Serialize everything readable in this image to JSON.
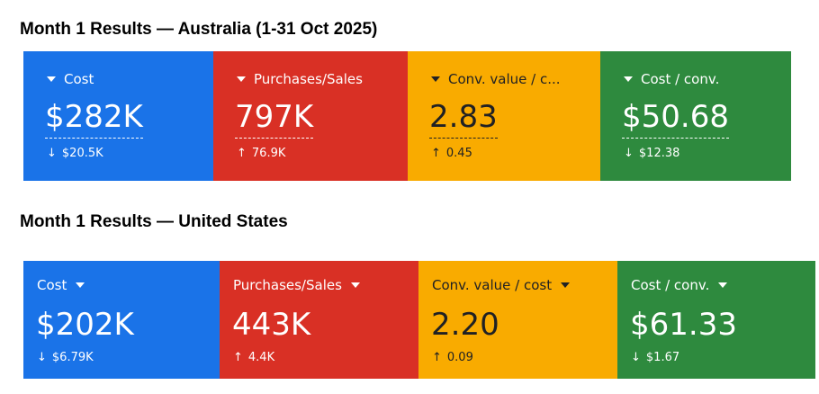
{
  "sections": [
    {
      "title": "Month 1 Results — Australia (1-31 Oct 2025)",
      "cards": [
        {
          "label": "Cost",
          "value": "$282K",
          "delta": "$20.5K",
          "delta_arrow": "↓",
          "color": "#1a73e8"
        },
        {
          "label": "Purchases/Sales",
          "value": "797K",
          "delta": "76.9K",
          "delta_arrow": "↑",
          "color": "#d93025"
        },
        {
          "label": "Conv. value / c...",
          "value": "2.83",
          "delta": "0.45",
          "delta_arrow": "↑",
          "color": "#f9ab00"
        },
        {
          "label": "Cost / conv.",
          "value": "$50.68",
          "delta": "$12.38",
          "delta_arrow": "↓",
          "color": "#2e8a3e"
        }
      ]
    },
    {
      "title": "Month 1 Results — United States",
      "cards": [
        {
          "label": "Cost",
          "value": "$202K",
          "delta": "$6.79K",
          "delta_arrow": "↓",
          "color": "#1a73e8"
        },
        {
          "label": "Purchases/Sales",
          "value": "443K",
          "delta": "4.4K",
          "delta_arrow": "↑",
          "color": "#d93025"
        },
        {
          "label": "Conv. value / cost",
          "value": "2.20",
          "delta": "0.09",
          "delta_arrow": "↑",
          "color": "#f9ab00"
        },
        {
          "label": "Cost / conv.",
          "value": "$61.33",
          "delta": "$1.67",
          "delta_arrow": "↓",
          "color": "#2e8a3e"
        }
      ]
    }
  ]
}
